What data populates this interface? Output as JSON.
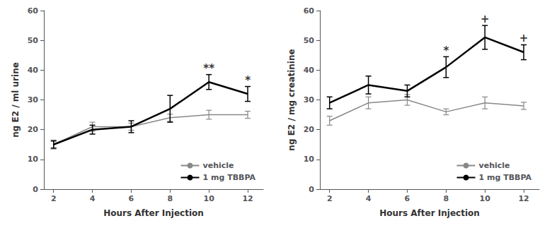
{
  "chart_data": [
    {
      "type": "line",
      "x": [
        2,
        4,
        6,
        8,
        10,
        12
      ],
      "xlabel": "Hours After Injection",
      "ylabel": "ng E2 / ml urine",
      "xlim": [
        1.5,
        12.8
      ],
      "xticks": [
        2,
        4,
        6,
        8,
        10,
        12
      ],
      "ylim": [
        0,
        60
      ],
      "yticks": [
        0,
        10,
        20,
        30,
        40,
        50,
        60
      ],
      "grid": false,
      "legend": "lower right",
      "series": [
        {
          "name": "vehicle",
          "color": "#888888",
          "values": [
            15,
            21,
            21,
            24,
            25,
            25
          ],
          "errors": [
            1.5,
            1.5,
            1.2,
            1.2,
            1.5,
            1.2
          ]
        },
        {
          "name": "1 mg TBBPA",
          "color": "#000000",
          "values": [
            15,
            20,
            21,
            27,
            36,
            32
          ],
          "errors": [
            1.2,
            1.5,
            2.0,
            4.5,
            2.5,
            2.5
          ]
        }
      ],
      "annotations": [
        {
          "x": 10,
          "y": 38.8,
          "text": "**"
        },
        {
          "x": 12,
          "y": 34.8,
          "text": "*"
        }
      ]
    },
    {
      "type": "line",
      "x": [
        2,
        4,
        6,
        8,
        10,
        12
      ],
      "xlabel": "Hours After Injection",
      "ylabel": "ng E2 / mg creatinine",
      "xlim": [
        1.5,
        12.8
      ],
      "xticks": [
        2,
        4,
        6,
        8,
        10,
        12
      ],
      "ylim": [
        0,
        60
      ],
      "yticks": [
        0,
        10,
        20,
        30,
        40,
        50,
        60
      ],
      "grid": false,
      "legend": "lower right",
      "series": [
        {
          "name": "vehicle",
          "color": "#888888",
          "values": [
            23,
            29,
            30,
            26,
            29,
            28
          ],
          "errors": [
            1.5,
            2.0,
            1.8,
            1.0,
            2.0,
            1.2
          ]
        },
        {
          "name": "1 mg TBBPA",
          "color": "#000000",
          "values": [
            29,
            35,
            33,
            41,
            51,
            46
          ],
          "errors": [
            2.0,
            3.0,
            2.0,
            3.5,
            4.0,
            2.5
          ]
        }
      ],
      "annotations": [
        {
          "x": 8,
          "y": 44.8,
          "text": "*"
        },
        {
          "x": 10,
          "y": 55.3,
          "text": "+"
        },
        {
          "x": 12,
          "y": 49.0,
          "text": "+"
        }
      ]
    }
  ]
}
